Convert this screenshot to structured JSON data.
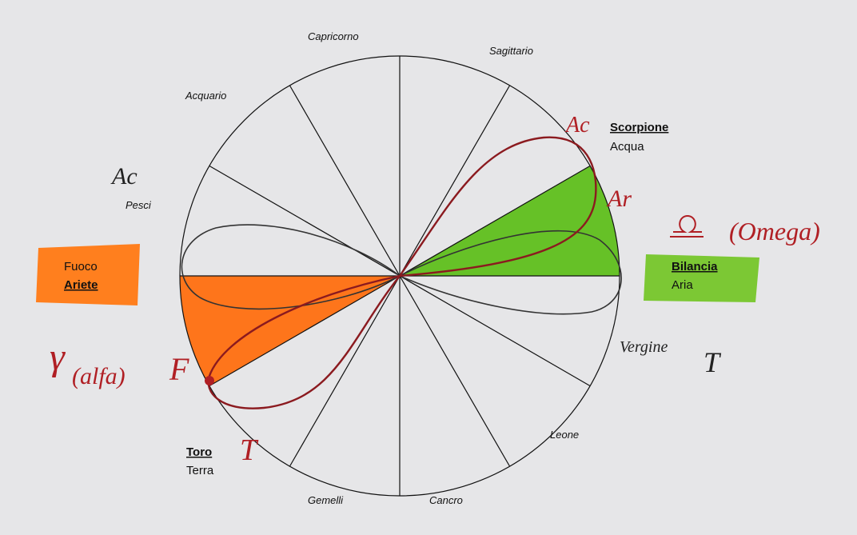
{
  "signs": {
    "capricorno": "Capricorno",
    "sagittario": "Sagittario",
    "acquario": "Acquario",
    "scorpione": "Scorpione",
    "pesci": "Pesci",
    "ariete": "Ariete",
    "bilancia": "Bilancia",
    "vergine": "Vergine",
    "toro": "Toro",
    "leone": "Leone",
    "gemelli": "Gemelli",
    "cancro": "Cancro"
  },
  "elements": {
    "acqua": "Acqua",
    "fuoco": "Fuoco",
    "aria": "Aria",
    "terra": "Terra"
  },
  "handwritten": {
    "ac_left": "Ac",
    "ac_top": "Ac",
    "ar_right": "Ar",
    "omega": "(Omega)",
    "alfa": "(alfa)",
    "alfa_symbol": "γ",
    "f": "F",
    "t_right": "T",
    "t_bottom": "T"
  }
}
